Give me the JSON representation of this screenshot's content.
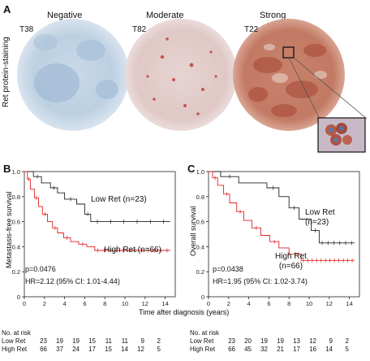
{
  "panelA": {
    "letter": "A",
    "ylabel": "Ret protein-staining",
    "cores": [
      {
        "category": "Negative",
        "id": "T38"
      },
      {
        "category": "Moderate",
        "id": "T82"
      },
      {
        "category": "Strong",
        "id": "T22"
      }
    ]
  },
  "panelB": {
    "letter": "B",
    "ylabel": "Metastasis-free survival",
    "low_label": "Low Ret (n=23)",
    "high_label": "High Ret (n=66)",
    "p_value": "p=0.0476",
    "hr": "HR=2.12 (95% CI: 1.01-4.44)"
  },
  "panelC": {
    "letter": "C",
    "ylabel": "Overall survival",
    "low_label_1": "Low Ret",
    "low_label_2": "(n=23)",
    "high_label_1": "High Ret",
    "high_label_2": "(n=66)",
    "p_value": "p=0.0438",
    "hr": "HR=1.95 (95% CI: 1.02-3.74)"
  },
  "xlabel": "Time after diagnosis (years)",
  "risk_tables": [
    {
      "title": "No. at risk",
      "rows": [
        {
          "label": "Low Ret",
          "values": [
            "23",
            "19",
            "19",
            "15",
            "11",
            "11",
            "9",
            "2"
          ]
        },
        {
          "label": "High Ret",
          "values": [
            "66",
            "37",
            "24",
            "17",
            "15",
            "14",
            "12",
            "5"
          ]
        }
      ]
    },
    {
      "title": "No. at risk",
      "rows": [
        {
          "label": "Low Ret",
          "values": [
            "23",
            "20",
            "19",
            "19",
            "13",
            "12",
            "9",
            "2"
          ]
        },
        {
          "label": "High Ret",
          "values": [
            "66",
            "45",
            "32",
            "21",
            "17",
            "16",
            "14",
            "5"
          ]
        }
      ]
    }
  ],
  "chart_data": [
    {
      "type": "line",
      "panel": "B",
      "xlabel": "Time after diagnosis (years)",
      "ylabel": "Metastasis-free survival",
      "xlim": [
        0,
        15
      ],
      "ylim": [
        0,
        1.0
      ],
      "xticks": [
        0,
        2,
        4,
        6,
        8,
        10,
        12,
        14
      ],
      "yticks": [
        0,
        0.2,
        0.4,
        0.6,
        0.8,
        1.0
      ],
      "series": [
        {
          "name": "Low Ret (n=23)",
          "color": "#222222",
          "x": [
            0,
            0.9,
            0.9,
            1.7,
            1.7,
            2.6,
            2.6,
            3.3,
            3.3,
            4.0,
            4.0,
            5.2,
            5.2,
            6.0,
            6.0,
            6.6,
            6.6,
            14.5
          ],
          "y": [
            1.0,
            1.0,
            0.96,
            0.96,
            0.91,
            0.91,
            0.87,
            0.87,
            0.83,
            0.83,
            0.78,
            0.78,
            0.74,
            0.74,
            0.66,
            0.66,
            0.6,
            0.6
          ]
        },
        {
          "name": "High Ret (n=66)",
          "color": "#dd2222",
          "x": [
            0,
            0.3,
            0.3,
            0.6,
            0.6,
            1.0,
            1.0,
            1.4,
            1.4,
            1.8,
            1.8,
            2.3,
            2.3,
            2.8,
            2.8,
            3.3,
            3.3,
            3.9,
            3.9,
            4.6,
            4.6,
            5.4,
            5.4,
            6.2,
            6.2,
            7.0,
            7.0,
            14.5
          ],
          "y": [
            1.0,
            1.0,
            0.94,
            0.94,
            0.86,
            0.86,
            0.79,
            0.79,
            0.72,
            0.72,
            0.66,
            0.66,
            0.6,
            0.6,
            0.55,
            0.55,
            0.51,
            0.51,
            0.47,
            0.47,
            0.44,
            0.44,
            0.42,
            0.42,
            0.4,
            0.4,
            0.37,
            0.37
          ]
        }
      ]
    },
    {
      "type": "line",
      "panel": "C",
      "xlabel": "Time after diagnosis (years)",
      "ylabel": "Overall survival",
      "xlim": [
        0,
        15
      ],
      "ylim": [
        0,
        1.0
      ],
      "xticks": [
        0,
        2,
        4,
        6,
        8,
        10,
        12,
        14
      ],
      "yticks": [
        0,
        0.2,
        0.4,
        0.6,
        0.8,
        1.0
      ],
      "series": [
        {
          "name": "Low Ret (n=23)",
          "color": "#222222",
          "x": [
            0,
            1.2,
            1.2,
            3.0,
            3.0,
            5.8,
            5.8,
            7.0,
            7.0,
            8.0,
            8.0,
            9.0,
            9.0,
            10.2,
            10.2,
            11.0,
            11.0,
            14.5
          ],
          "y": [
            1.0,
            1.0,
            0.96,
            0.96,
            0.91,
            0.91,
            0.87,
            0.87,
            0.8,
            0.8,
            0.71,
            0.71,
            0.62,
            0.62,
            0.53,
            0.53,
            0.43,
            0.43
          ]
        },
        {
          "name": "High Ret (n=66)",
          "color": "#dd2222",
          "x": [
            0,
            0.4,
            0.4,
            0.9,
            0.9,
            1.5,
            1.5,
            2.1,
            2.1,
            2.8,
            2.8,
            3.5,
            3.5,
            4.3,
            4.3,
            5.2,
            5.2,
            6.1,
            6.1,
            7.0,
            7.0,
            8.0,
            8.0,
            9.2,
            9.2,
            14.5
          ],
          "y": [
            1.0,
            1.0,
            0.95,
            0.95,
            0.89,
            0.89,
            0.82,
            0.82,
            0.75,
            0.75,
            0.68,
            0.68,
            0.61,
            0.61,
            0.55,
            0.55,
            0.49,
            0.49,
            0.44,
            0.44,
            0.39,
            0.39,
            0.34,
            0.34,
            0.29,
            0.29
          ]
        }
      ]
    }
  ]
}
